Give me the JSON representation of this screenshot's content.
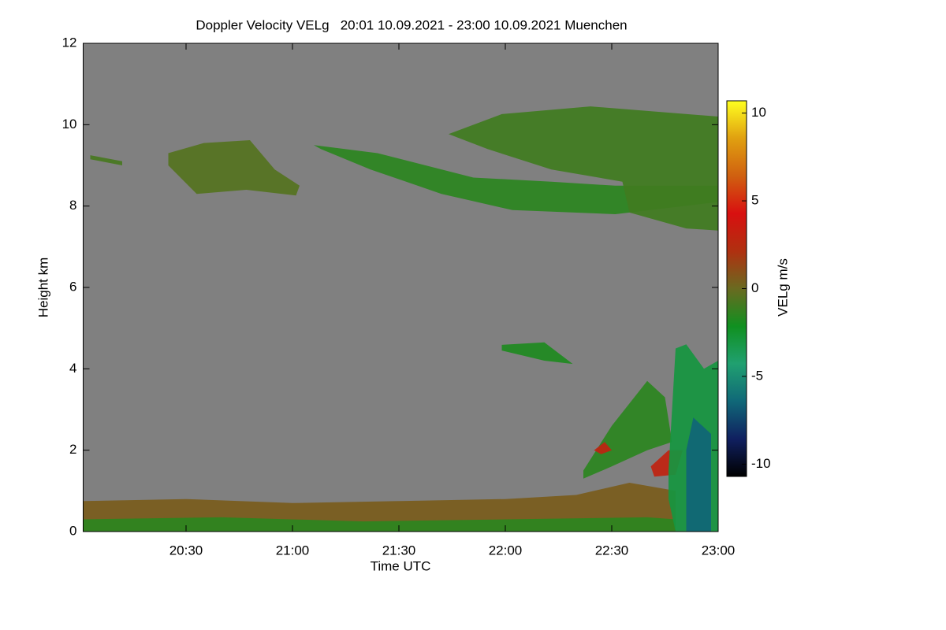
{
  "chart_data": {
    "type": "time-height",
    "title": "Doppler Velocity VELg   20:01 10.09.2021 - 23:00 10.09.2021 Muenchen",
    "x_label": "Time UTC",
    "y_label": "Height km",
    "colorbar_label": "VELg m/s",
    "xlim": [
      "20:01",
      "23:00"
    ],
    "xticks": [
      "20:30",
      "21:00",
      "21:30",
      "22:00",
      "22:30",
      "23:00"
    ],
    "ylim": [
      0,
      12
    ],
    "yticks": [
      0,
      2,
      4,
      6,
      8,
      10,
      12
    ],
    "clim": [
      -10.7,
      10.7
    ],
    "cticks": [
      -10,
      -5,
      0,
      5,
      10
    ],
    "colormap": [
      "#000000",
      "#102060",
      "#106878",
      "#20a070",
      "#109020",
      "#6a6a20",
      "#b03010",
      "#d81010",
      "#d06010",
      "#e0a010",
      "#ffff20"
    ],
    "background": "#808080",
    "regions": [
      {
        "value": 0.5,
        "time": [
          "20:01",
          "20:30",
          "21:00",
          "21:30",
          "22:00",
          "22:20",
          "22:35",
          "22:48",
          "22:48",
          "20:01"
        ],
        "height": [
          0.75,
          0.8,
          0.7,
          0.75,
          0.8,
          0.9,
          1.2,
          1.0,
          0,
          0
        ]
      },
      {
        "value": -1.5,
        "time": [
          "20:01",
          "20:40",
          "21:20",
          "22:00",
          "22:40",
          "22:48",
          "22:48",
          "20:01"
        ],
        "height": [
          0.3,
          0.35,
          0.25,
          0.3,
          0.35,
          0.3,
          0,
          0
        ]
      },
      {
        "value": -0.8,
        "time": [
          "20:03",
          "20:12",
          "20:12",
          "20:03"
        ],
        "height": [
          9.25,
          9.1,
          9.0,
          9.15
        ]
      },
      {
        "value": -0.5,
        "time": [
          "20:25",
          "20:35",
          "20:48",
          "20:55",
          "21:02",
          "21:01",
          "20:47",
          "20:33",
          "20:25"
        ],
        "height": [
          9.3,
          9.55,
          9.62,
          8.9,
          8.5,
          8.26,
          8.4,
          8.3,
          9.0
        ]
      },
      {
        "value": -1.5,
        "time": [
          "21:06",
          "21:24",
          "21:51",
          "22:13",
          "22:31",
          "23:00",
          "23:00",
          "22:31",
          "22:02",
          "21:42",
          "21:22",
          "21:08"
        ],
        "height": [
          9.5,
          9.3,
          8.7,
          8.6,
          8.5,
          8.5,
          8.1,
          7.8,
          7.9,
          8.3,
          8.9,
          9.4
        ]
      },
      {
        "value": -1.0,
        "time": [
          "21:44",
          "21:59",
          "22:24",
          "23:00",
          "23:00",
          "22:51",
          "22:35",
          "22:33",
          "22:13",
          "21:55"
        ],
        "height": [
          9.77,
          10.26,
          10.45,
          10.2,
          7.4,
          7.45,
          7.84,
          8.6,
          8.9,
          9.4
        ]
      },
      {
        "value": -1.8,
        "time": [
          "21:59",
          "22:11",
          "22:19",
          "22:11",
          "21:59"
        ],
        "height": [
          4.59,
          4.65,
          4.12,
          4.2,
          4.45
        ]
      },
      {
        "value": -1.5,
        "time": [
          "22:22",
          "22:30",
          "22:40",
          "22:45",
          "22:47",
          "22:40",
          "22:30",
          "22:22"
        ],
        "height": [
          1.5,
          2.6,
          3.7,
          3.3,
          2.2,
          2.0,
          1.6,
          1.3
        ]
      },
      {
        "value": 3.0,
        "time": [
          "22:25",
          "22:28",
          "22:30",
          "22:27"
        ],
        "height": [
          2.0,
          2.2,
          2.0,
          1.9
        ]
      },
      {
        "value": 3.0,
        "time": [
          "22:41",
          "22:46",
          "22:50",
          "22:48",
          "22:42"
        ],
        "height": [
          1.6,
          2.0,
          2.0,
          1.4,
          1.35
        ]
      },
      {
        "value": -3.0,
        "time": [
          "22:46",
          "22:48",
          "22:51",
          "22:56",
          "23:00",
          "23:00",
          "22:48",
          "22:46"
        ],
        "height": [
          1.5,
          4.5,
          4.6,
          4.0,
          4.2,
          0,
          0,
          0.8
        ]
      },
      {
        "value": -6.5,
        "time": [
          "22:51",
          "22:53",
          "22:58",
          "22:58",
          "22:51"
        ],
        "height": [
          2.0,
          2.8,
          2.4,
          0,
          0
        ]
      }
    ]
  }
}
